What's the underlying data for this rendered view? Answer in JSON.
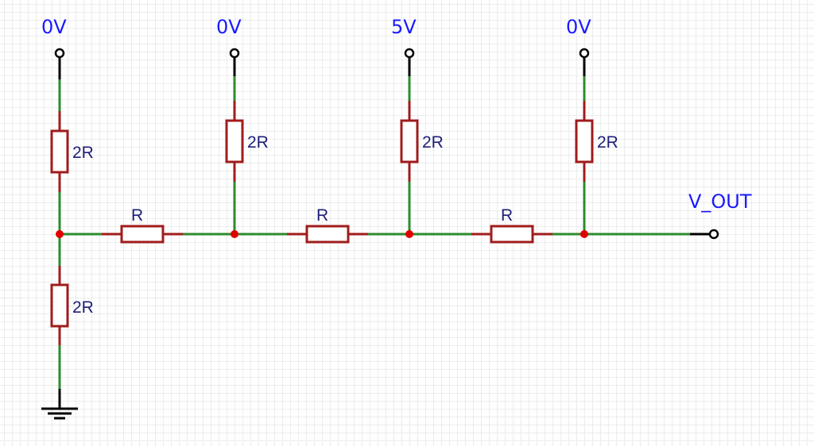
{
  "colors": {
    "wire": "#2e8b2e",
    "resistor": "#a01c1c",
    "junction": "#e00000",
    "label": "#1a1aff",
    "value": "#1e1e7a",
    "terminal": "#000000"
  },
  "sources": [
    {
      "label": "0V"
    },
    {
      "label": "0V"
    },
    {
      "label": "5V"
    },
    {
      "label": "0V"
    }
  ],
  "vertical_resistors": [
    {
      "value": "2R"
    },
    {
      "value": "2R"
    },
    {
      "value": "2R"
    },
    {
      "value": "2R"
    }
  ],
  "bottom_resistor": {
    "value": "2R"
  },
  "series_resistors": [
    {
      "value": "R"
    },
    {
      "value": "R"
    },
    {
      "value": "R"
    }
  ],
  "output": {
    "label": "V_OUT"
  },
  "ground": {
    "icon": "ground-icon"
  }
}
